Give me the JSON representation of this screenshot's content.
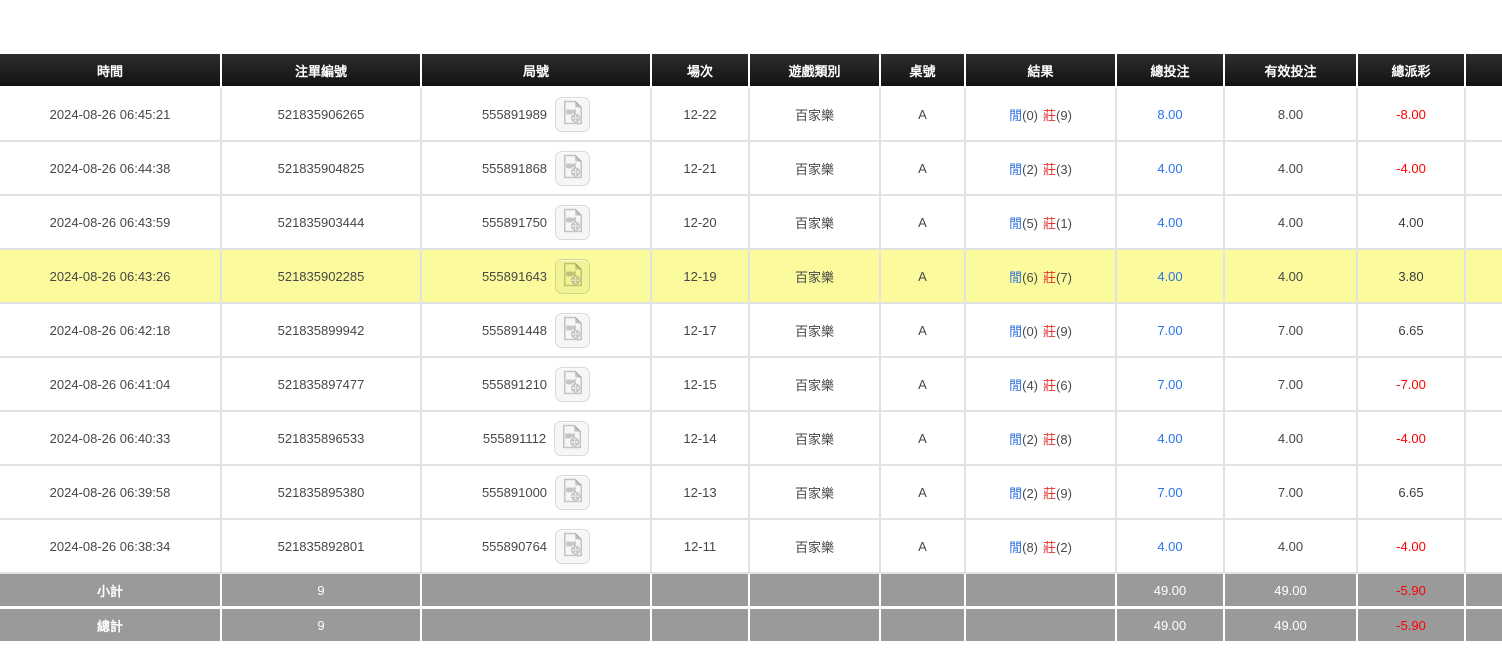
{
  "colors": {
    "header_bg": "#1a1a1a",
    "header_text": "#ffffff",
    "row_highlight": "#fbfb9d",
    "link_blue": "#2a74ea",
    "negative_red": "#ff0000",
    "player_blue": "#2b6de0",
    "banker_red": "#e03430",
    "footer_bg": "#9a9a9a"
  },
  "icons": {
    "round_video_icon": "video-file-icon"
  },
  "table": {
    "columns": [
      "時間",
      "注單編號",
      "局號",
      "場次",
      "遊戲類別",
      "桌號",
      "結果",
      "總投注",
      "有效投注",
      "總派彩",
      ""
    ],
    "result_labels": {
      "player": "閒",
      "banker": "莊"
    },
    "rows": [
      {
        "time": "2024-08-26 06:45:21",
        "bet_no": "521835906265",
        "round_no": "555891989",
        "session": "12-22",
        "game": "百家樂",
        "table": "A",
        "player_score": "(0)",
        "banker_score": "(9)",
        "total_bet": "8.00",
        "valid_bet": "8.00",
        "payout": "-8.00",
        "highlighted": false
      },
      {
        "time": "2024-08-26 06:44:38",
        "bet_no": "521835904825",
        "round_no": "555891868",
        "session": "12-21",
        "game": "百家樂",
        "table": "A",
        "player_score": "(2)",
        "banker_score": "(3)",
        "total_bet": "4.00",
        "valid_bet": "4.00",
        "payout": "-4.00",
        "highlighted": false
      },
      {
        "time": "2024-08-26 06:43:59",
        "bet_no": "521835903444",
        "round_no": "555891750",
        "session": "12-20",
        "game": "百家樂",
        "table": "A",
        "player_score": "(5)",
        "banker_score": "(1)",
        "total_bet": "4.00",
        "valid_bet": "4.00",
        "payout": "4.00",
        "highlighted": false
      },
      {
        "time": "2024-08-26 06:43:26",
        "bet_no": "521835902285",
        "round_no": "555891643",
        "session": "12-19",
        "game": "百家樂",
        "table": "A",
        "player_score": "(6)",
        "banker_score": "(7)",
        "total_bet": "4.00",
        "valid_bet": "4.00",
        "payout": "3.80",
        "highlighted": true
      },
      {
        "time": "2024-08-26 06:42:18",
        "bet_no": "521835899942",
        "round_no": "555891448",
        "session": "12-17",
        "game": "百家樂",
        "table": "A",
        "player_score": "(0)",
        "banker_score": "(9)",
        "total_bet": "7.00",
        "valid_bet": "7.00",
        "payout": "6.65",
        "highlighted": false
      },
      {
        "time": "2024-08-26 06:41:04",
        "bet_no": "521835897477",
        "round_no": "555891210",
        "session": "12-15",
        "game": "百家樂",
        "table": "A",
        "player_score": "(4)",
        "banker_score": "(6)",
        "total_bet": "7.00",
        "valid_bet": "7.00",
        "payout": "-7.00",
        "highlighted": false
      },
      {
        "time": "2024-08-26 06:40:33",
        "bet_no": "521835896533",
        "round_no": "555891112",
        "session": "12-14",
        "game": "百家樂",
        "table": "A",
        "player_score": "(2)",
        "banker_score": "(8)",
        "total_bet": "4.00",
        "valid_bet": "4.00",
        "payout": "-4.00",
        "highlighted": false
      },
      {
        "time": "2024-08-26 06:39:58",
        "bet_no": "521835895380",
        "round_no": "555891000",
        "session": "12-13",
        "game": "百家樂",
        "table": "A",
        "player_score": "(2)",
        "banker_score": "(9)",
        "total_bet": "7.00",
        "valid_bet": "7.00",
        "payout": "6.65",
        "highlighted": false
      },
      {
        "time": "2024-08-26 06:38:34",
        "bet_no": "521835892801",
        "round_no": "555890764",
        "session": "12-11",
        "game": "百家樂",
        "table": "A",
        "player_score": "(8)",
        "banker_score": "(2)",
        "total_bet": "4.00",
        "valid_bet": "4.00",
        "payout": "-4.00",
        "highlighted": false
      }
    ],
    "footer": [
      {
        "label": "小計",
        "count": "9",
        "total_bet": "49.00",
        "valid_bet": "49.00",
        "payout": "-5.90"
      },
      {
        "label": "總計",
        "count": "9",
        "total_bet": "49.00",
        "valid_bet": "49.00",
        "payout": "-5.90"
      }
    ]
  }
}
